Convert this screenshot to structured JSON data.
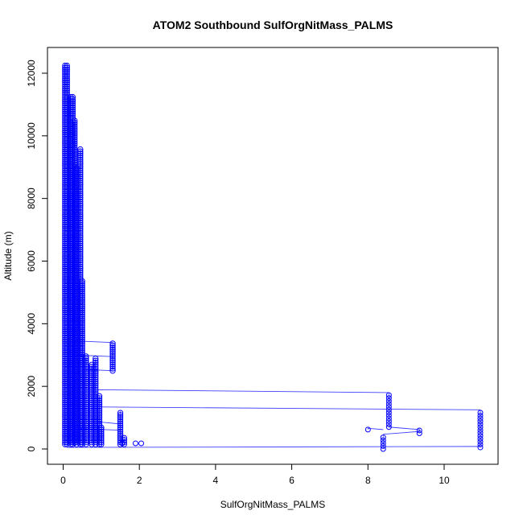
{
  "chart_data": {
    "type": "scatter",
    "title": "ATOM2 Southbound SulfOrgNitMass_PALMS",
    "xlabel": "SulfOrgNitMass_PALMS",
    "ylabel": "Altitude (m)",
    "xlim": [
      0,
      11
    ],
    "ylim": [
      0,
      12300
    ],
    "xticks": [
      0,
      2,
      4,
      6,
      8,
      10
    ],
    "yticks": [
      0,
      2000,
      4000,
      6000,
      8000,
      10000,
      12000
    ],
    "grid": false,
    "legend": "none",
    "point_style": "open-circle",
    "connected": true,
    "series_color": "#0000ff",
    "line_color": "#4040ff",
    "main_cluster": [
      {
        "x": 0.05,
        "ymin": 150,
        "ymax": 12300
      },
      {
        "x": 0.1,
        "ymin": 150,
        "ymax": 12300
      },
      {
        "x": 0.2,
        "ymin": 150,
        "ymax": 11300
      },
      {
        "x": 0.25,
        "ymin": 150,
        "ymax": 11300
      },
      {
        "x": 0.3,
        "ymin": 200,
        "ymax": 10500
      },
      {
        "x": 0.35,
        "ymin": 150,
        "ymax": 9000
      },
      {
        "x": 0.45,
        "ymin": 150,
        "ymax": 9600
      },
      {
        "x": 0.5,
        "ymin": 150,
        "ymax": 5400
      },
      {
        "x": 0.6,
        "ymin": 150,
        "ymax": 3000
      },
      {
        "x": 0.75,
        "ymin": 150,
        "ymax": 2700
      },
      {
        "x": 0.85,
        "ymin": 150,
        "ymax": 2900
      },
      {
        "x": 0.95,
        "ymin": 150,
        "ymax": 1700
      },
      {
        "x": 1.0,
        "ymin": 150,
        "ymax": 700
      },
      {
        "x": 1.3,
        "ymin": 2500,
        "ymax": 3400
      },
      {
        "x": 1.5,
        "ymin": 150,
        "ymax": 1200
      },
      {
        "x": 1.6,
        "ymin": 150,
        "ymax": 400
      }
    ],
    "outlier_columns": [
      {
        "x": 8.0,
        "ymin": 620,
        "ymax": 680
      },
      {
        "x": 8.4,
        "ymin": 0,
        "ymax": 450
      },
      {
        "x": 8.55,
        "ymin": 700,
        "ymax": 1800
      },
      {
        "x": 9.35,
        "ymin": 500,
        "ymax": 650
      },
      {
        "x": 10.95,
        "ymin": 50,
        "ymax": 1250
      }
    ],
    "points": [
      {
        "x": 2.05,
        "y": 180
      },
      {
        "x": 1.9,
        "y": 180
      },
      {
        "x": 1.55,
        "y": 180
      }
    ],
    "connecting_segments": [
      {
        "x1": 0.1,
        "y1": 1350,
        "x2": 10.95,
        "y2": 1250
      },
      {
        "x1": 0.1,
        "y1": 1900,
        "x2": 8.55,
        "y2": 1800
      },
      {
        "x1": 0.1,
        "y1": 50,
        "x2": 10.95,
        "y2": 80
      },
      {
        "x1": 8.55,
        "y1": 700,
        "x2": 9.35,
        "y2": 620
      },
      {
        "x1": 8.4,
        "y1": 470,
        "x2": 9.35,
        "y2": 560
      },
      {
        "x1": 8.0,
        "y1": 660,
        "x2": 8.4,
        "y2": 620
      },
      {
        "x1": 0.3,
        "y1": 3450,
        "x2": 1.3,
        "y2": 3400
      },
      {
        "x1": 0.3,
        "y1": 3000,
        "x2": 1.3,
        "y2": 2950
      },
      {
        "x1": 0.3,
        "y1": 2550,
        "x2": 1.3,
        "y2": 2500
      },
      {
        "x1": 0.45,
        "y1": 4000,
        "x2": 0.25,
        "y2": 3700
      },
      {
        "x1": 0.6,
        "y1": 900,
        "x2": 1.5,
        "y2": 800
      },
      {
        "x1": 0.4,
        "y1": 650,
        "x2": 1.5,
        "y2": 600
      }
    ]
  }
}
